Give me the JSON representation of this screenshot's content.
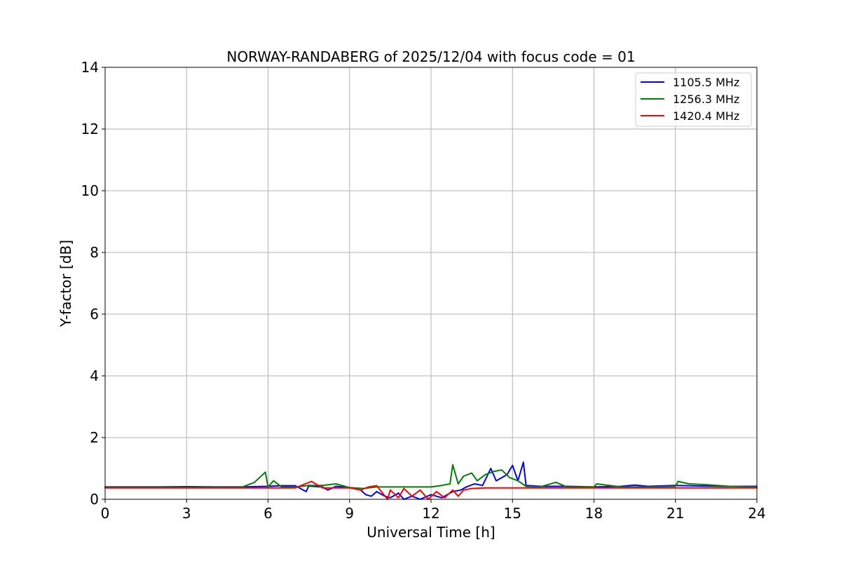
{
  "chart_data": {
    "type": "line",
    "title": "NORWAY-RANDABERG of 2025/12/04 with focus code = 01",
    "xlabel": "Universal Time [h]",
    "ylabel": "Y-factor [dB]",
    "xlim": [
      0,
      24
    ],
    "ylim": [
      0,
      14
    ],
    "xticks": [
      0,
      3,
      6,
      9,
      12,
      15,
      18,
      21,
      24
    ],
    "yticks": [
      0,
      2,
      4,
      6,
      8,
      10,
      12,
      14
    ],
    "xtick_labels": [
      "0",
      "3",
      "6",
      "9",
      "12",
      "15",
      "18",
      "21",
      "24"
    ],
    "ytick_labels": [
      "0",
      "2",
      "4",
      "6",
      "8",
      "10",
      "12",
      "14"
    ],
    "grid": true,
    "legend_position": "top-right",
    "series": [
      {
        "name": "1105.5 MHz",
        "color": "#0000ff",
        "x": [
          0,
          1,
          2,
          3,
          4,
          5,
          6,
          6.5,
          7,
          7.4,
          7.5,
          8,
          8.2,
          8.5,
          9,
          9.4,
          9.6,
          9.8,
          10,
          10.3,
          10.5,
          10.8,
          11,
          11.3,
          11.6,
          12,
          12.4,
          12.8,
          13.1,
          13.3,
          13.6,
          13.9,
          14.2,
          14.4,
          14.6,
          14.8,
          15,
          15.2,
          15.4,
          15.5,
          16,
          17,
          18,
          19,
          19.5,
          20,
          21,
          22,
          23,
          24
        ],
        "y": [
          0.4,
          0.4,
          0.4,
          0.41,
          0.4,
          0.4,
          0.42,
          0.44,
          0.44,
          0.25,
          0.43,
          0.4,
          0.3,
          0.42,
          0.38,
          0.3,
          0.15,
          0.1,
          0.25,
          0.1,
          0.05,
          0.2,
          0.0,
          0.1,
          0.0,
          0.15,
          0.05,
          0.25,
          0.3,
          0.4,
          0.5,
          0.45,
          1.0,
          0.6,
          0.7,
          0.8,
          1.1,
          0.6,
          1.2,
          0.45,
          0.42,
          0.42,
          0.4,
          0.42,
          0.46,
          0.42,
          0.45,
          0.43,
          0.42,
          0.42
        ]
      },
      {
        "name": "1256.3 MHz",
        "color": "#008000",
        "x": [
          0,
          1,
          2,
          3,
          4,
          5,
          5.5,
          5.9,
          6,
          6.2,
          6.5,
          7,
          7.5,
          8,
          8.5,
          9,
          9.5,
          10,
          11,
          12,
          12.4,
          12.7,
          12.8,
          13,
          13.2,
          13.5,
          13.7,
          14,
          14.3,
          14.6,
          14.9,
          15.2,
          15.5,
          16,
          16.6,
          17,
          18,
          18.1,
          19,
          20,
          21,
          21.1,
          21.5,
          22,
          23,
          24
        ],
        "y": [
          0.38,
          0.38,
          0.38,
          0.38,
          0.38,
          0.38,
          0.55,
          0.88,
          0.4,
          0.6,
          0.4,
          0.4,
          0.45,
          0.45,
          0.5,
          0.38,
          0.35,
          0.4,
          0.4,
          0.4,
          0.45,
          0.5,
          1.12,
          0.5,
          0.75,
          0.85,
          0.6,
          0.8,
          0.9,
          0.95,
          0.7,
          0.6,
          0.42,
          0.4,
          0.55,
          0.4,
          0.4,
          0.5,
          0.4,
          0.4,
          0.42,
          0.58,
          0.5,
          0.48,
          0.42,
          0.4
        ]
      },
      {
        "name": "1420.4 MHz",
        "color": "#ff0000",
        "x": [
          0,
          2,
          4,
          6,
          7,
          7.6,
          8,
          9,
          9.4,
          9.7,
          10,
          10.4,
          10.5,
          10.8,
          11,
          11.3,
          11.6,
          11.9,
          12.2,
          12.5,
          12.8,
          13.0,
          13.2,
          13.5,
          14,
          15,
          16,
          18,
          20,
          22,
          24
        ],
        "y": [
          0.37,
          0.37,
          0.37,
          0.37,
          0.37,
          0.58,
          0.37,
          0.37,
          0.3,
          0.4,
          0.44,
          0.0,
          0.3,
          0.05,
          0.35,
          0.1,
          0.3,
          0.0,
          0.25,
          0.05,
          0.3,
          0.1,
          0.3,
          0.35,
          0.37,
          0.37,
          0.37,
          0.37,
          0.37,
          0.37,
          0.37
        ]
      }
    ]
  }
}
